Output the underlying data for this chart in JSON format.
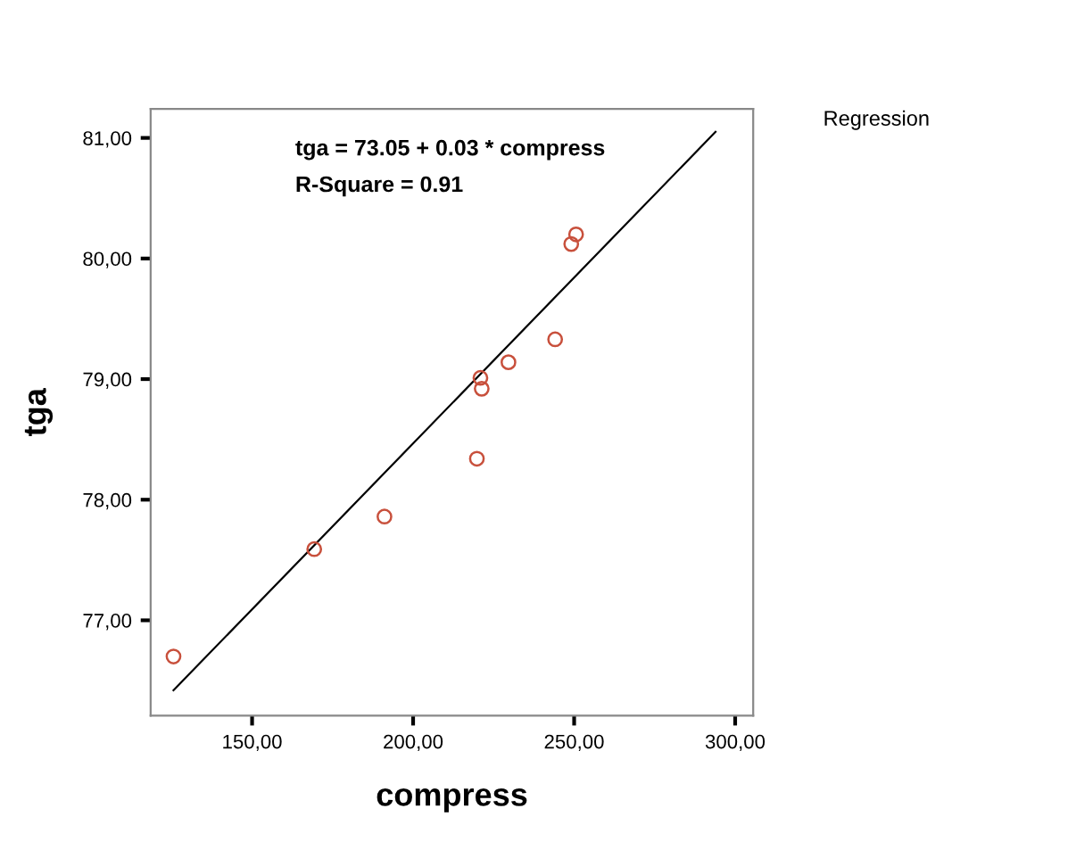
{
  "chart_data": {
    "type": "scatter",
    "xlabel": "compress",
    "ylabel": "tga",
    "annotations": [
      "tga = 73.05 + 0.03 * compress",
      "R-Square = 0.91",
      "Regression"
    ],
    "xlim": [
      118.5,
      305.6
    ],
    "ylim": [
      76.21,
      81.24
    ],
    "xticks": [
      {
        "value": 150,
        "label": "150,00"
      },
      {
        "value": 200,
        "label": "200,00"
      },
      {
        "value": 250,
        "label": "250,00"
      },
      {
        "value": 300,
        "label": "300,00"
      }
    ],
    "yticks": [
      {
        "value": 77,
        "label": "77,00"
      },
      {
        "value": 78,
        "label": "78,00"
      },
      {
        "value": 79,
        "label": "79,00"
      },
      {
        "value": 80,
        "label": "80,00"
      },
      {
        "value": 81,
        "label": "81,00"
      }
    ],
    "grid": false,
    "series": [
      {
        "marker": "circle",
        "color": "#c8503c",
        "x": [
          125.6,
          169.3,
          191.1,
          219.8,
          220.9,
          221.3,
          229.6,
          244.1,
          249.1,
          250.6
        ],
        "values": [
          76.7,
          77.59,
          77.86,
          78.34,
          79.01,
          78.92,
          79.14,
          79.33,
          80.12,
          80.2
        ]
      },
      {
        "type": "line",
        "color": "#000000",
        "line_style": "solid",
        "x": [
          125.6,
          293.9
        ],
        "values": [
          76.42,
          81.05
        ]
      }
    ]
  }
}
